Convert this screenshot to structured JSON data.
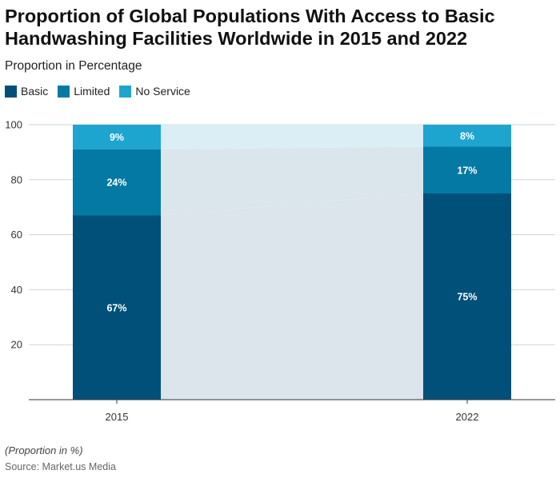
{
  "title": "Proportion of Global Populations With Access to Basic Handwashing Facilities Worldwide in 2015 and 2022",
  "subtitle": "Proportion in Percentage",
  "note": "(Proportion in %)",
  "source": "Source: Market.us Media",
  "legend": [
    {
      "label": "Basic",
      "color": "#01507a"
    },
    {
      "label": "Limited",
      "color": "#0479a4"
    },
    {
      "label": "No Service",
      "color": "#1da5d0"
    }
  ],
  "chart_data": {
    "type": "bar",
    "stacked": true,
    "categories": [
      "2015",
      "2022"
    ],
    "series": [
      {
        "name": "Basic",
        "values": [
          67,
          75
        ],
        "labels": [
          "67%",
          "75%"
        ],
        "color": "#01507a"
      },
      {
        "name": "Limited",
        "values": [
          24,
          17
        ],
        "labels": [
          "24%",
          "17%"
        ],
        "color": "#0479a4"
      },
      {
        "name": "No Service",
        "values": [
          9,
          8
        ],
        "labels": [
          "9%",
          "8%"
        ],
        "color": "#1da5d0"
      }
    ],
    "ylim": [
      0,
      100
    ],
    "yticks": [
      "20",
      "40",
      "60",
      "80",
      "100"
    ],
    "grid": true,
    "legend_position": "top-left"
  }
}
